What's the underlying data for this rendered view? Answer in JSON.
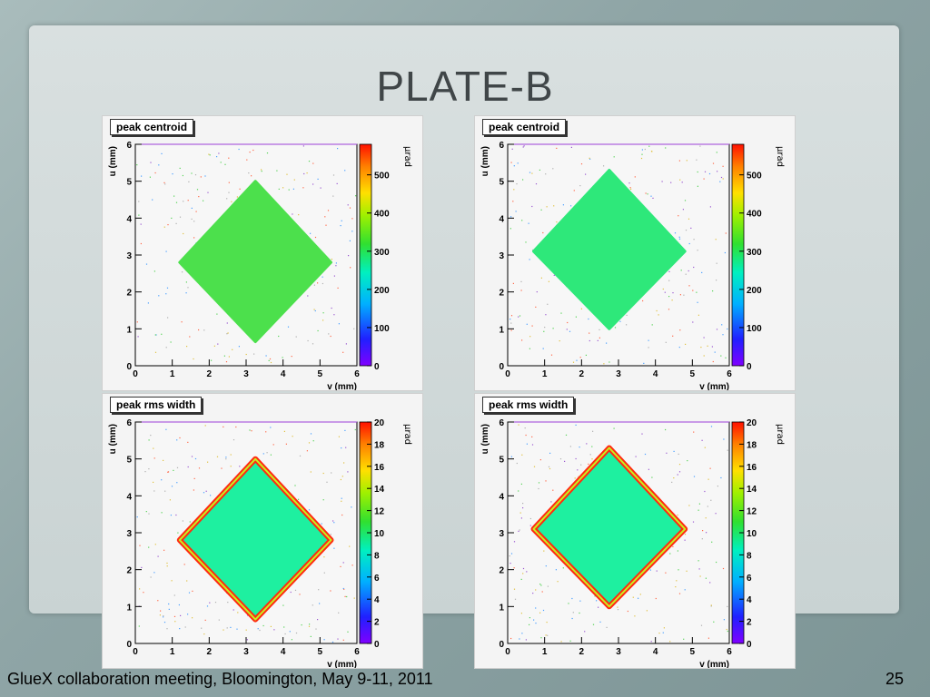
{
  "slide": {
    "title": "PLATE-B",
    "footer": "GlueX collaboration meeting, Bloomington, May 9-11, 2011",
    "page_number": "25"
  },
  "colors": {
    "background": "#8fa5a6",
    "panel": "#d3dbdb",
    "title_text": "#404648"
  },
  "chart_data": [
    {
      "type": "heatmap",
      "title": "peak centroid",
      "xlabel": "v (mm)",
      "ylabel": "u (mm)",
      "zlabel": "μrad",
      "xlim": [
        0,
        6
      ],
      "ylim": [
        0,
        6
      ],
      "zlim": [
        0,
        580
      ],
      "xticks": [
        "0",
        "1",
        "2",
        "3",
        "4",
        "5",
        "6"
      ],
      "yticks": [
        "0",
        "1",
        "2",
        "3",
        "4",
        "5",
        "6"
      ],
      "zticks": [
        "0",
        "100",
        "200",
        "300",
        "400",
        "500"
      ],
      "zticks_values": [
        0,
        100,
        200,
        300,
        400,
        500
      ],
      "region": {
        "shape": "diamond",
        "vertices": [
          [
            3.25,
            5.0
          ],
          [
            5.3,
            2.8
          ],
          [
            3.25,
            0.65
          ],
          [
            1.2,
            2.8
          ]
        ]
      },
      "value_in_region": 330,
      "fill_color": "#4ce04c",
      "edge_color": ""
    },
    {
      "type": "heatmap",
      "title": "peak centroid",
      "xlabel": "v (mm)",
      "ylabel": "u (mm)",
      "zlabel": "μrad",
      "xlim": [
        0,
        6
      ],
      "ylim": [
        0,
        6
      ],
      "zlim": [
        0,
        580
      ],
      "xticks": [
        "0",
        "1",
        "2",
        "3",
        "4",
        "5",
        "6"
      ],
      "yticks": [
        "0",
        "1",
        "2",
        "3",
        "4",
        "5",
        "6"
      ],
      "zticks": [
        "0",
        "100",
        "200",
        "300",
        "400",
        "500"
      ],
      "zticks_values": [
        0,
        100,
        200,
        300,
        400,
        500
      ],
      "region": {
        "shape": "diamond",
        "vertices": [
          [
            2.75,
            5.3
          ],
          [
            4.8,
            3.1
          ],
          [
            2.75,
            1.0
          ],
          [
            0.7,
            3.1
          ]
        ]
      },
      "value_in_region": 300,
      "fill_color": "#2ee87a",
      "edge_color": ""
    },
    {
      "type": "heatmap",
      "title": "peak rms width",
      "xlabel": "v (mm)",
      "ylabel": "u (mm)",
      "zlabel": "μrad",
      "xlim": [
        0,
        6
      ],
      "ylim": [
        0,
        6
      ],
      "zlim": [
        0,
        20
      ],
      "xticks": [
        "0",
        "1",
        "2",
        "3",
        "4",
        "5",
        "6"
      ],
      "yticks": [
        "0",
        "1",
        "2",
        "3",
        "4",
        "5",
        "6"
      ],
      "zticks": [
        "0",
        "2",
        "4",
        "6",
        "8",
        "10",
        "12",
        "14",
        "16",
        "18",
        "20"
      ],
      "zticks_values": [
        0,
        2,
        4,
        6,
        8,
        10,
        12,
        14,
        16,
        18,
        20
      ],
      "region": {
        "shape": "diamond",
        "vertices": [
          [
            3.25,
            5.0
          ],
          [
            5.3,
            2.8
          ],
          [
            3.25,
            0.65
          ],
          [
            1.2,
            2.8
          ]
        ]
      },
      "value_in_region": 9,
      "fill_color": "#1ef0a0",
      "edge_color": "#ff2a10"
    },
    {
      "type": "heatmap",
      "title": "peak rms width",
      "xlabel": "v (mm)",
      "ylabel": "u (mm)",
      "zlabel": "μrad",
      "xlim": [
        0,
        6
      ],
      "ylim": [
        0,
        6
      ],
      "zlim": [
        0,
        20
      ],
      "xticks": [
        "0",
        "1",
        "2",
        "3",
        "4",
        "5",
        "6"
      ],
      "yticks": [
        "0",
        "1",
        "2",
        "3",
        "4",
        "5",
        "6"
      ],
      "zticks": [
        "0",
        "2",
        "4",
        "6",
        "8",
        "10",
        "12",
        "14",
        "16",
        "18",
        "20"
      ],
      "zticks_values": [
        0,
        2,
        4,
        6,
        8,
        10,
        12,
        14,
        16,
        18,
        20
      ],
      "region": {
        "shape": "diamond",
        "vertices": [
          [
            2.75,
            5.3
          ],
          [
            4.8,
            3.1
          ],
          [
            2.75,
            1.0
          ],
          [
            0.7,
            3.1
          ]
        ]
      },
      "value_in_region": 9,
      "fill_color": "#1ef0a0",
      "edge_color": "#ff2a10"
    }
  ]
}
